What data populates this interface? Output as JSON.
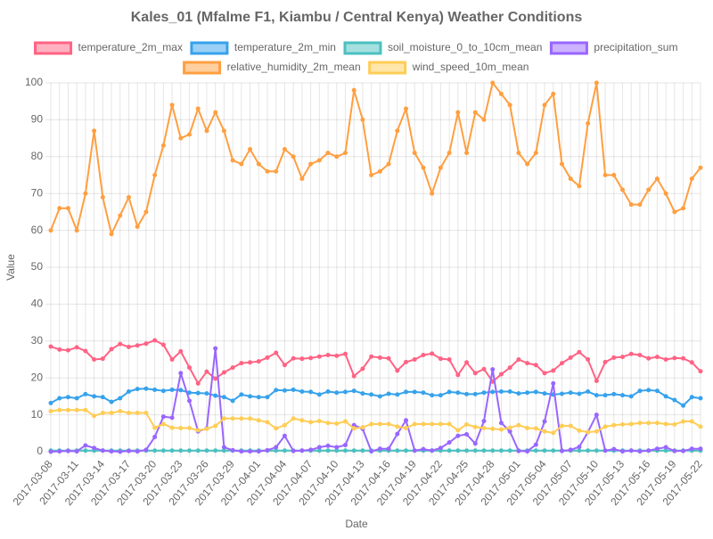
{
  "chart_data": {
    "type": "line",
    "title": "Kales_01 (Mfalme F1, Kiambu / Central Kenya) Weather Conditions",
    "x_label": "Date",
    "y_label": "Value",
    "categories": [
      "2017-03-08",
      null,
      null,
      "2017-03-11",
      null,
      null,
      "2017-03-14",
      null,
      null,
      "2017-03-17",
      null,
      null,
      "2017-03-20",
      null,
      null,
      "2017-03-23",
      null,
      null,
      "2017-03-26",
      null,
      null,
      "2017-03-29",
      null,
      null,
      "2017-04-01",
      null,
      null,
      "2017-04-04",
      null,
      null,
      "2017-04-07",
      null,
      null,
      "2017-04-10",
      null,
      null,
      "2017-04-13",
      null,
      null,
      "2017-04-16",
      null,
      null,
      "2017-04-19",
      null,
      null,
      "2017-04-22",
      null,
      null,
      "2017-04-25",
      null,
      null,
      "2017-04-28",
      null,
      null,
      "2017-05-01",
      null,
      null,
      "2017-05-04",
      null,
      null,
      "2017-05-07",
      null,
      null,
      "2017-05-10",
      null,
      null,
      "2017-05-13",
      null,
      null,
      "2017-05-16",
      null,
      null,
      "2017-05-19",
      null,
      null,
      "2017-05-22"
    ],
    "ylim": [
      0,
      100
    ],
    "yticks": [
      0,
      10,
      20,
      30,
      40,
      50,
      60,
      70,
      80,
      90,
      100
    ],
    "grid": true,
    "legend": "top",
    "series": [
      {
        "name": "temperature_2m_max",
        "color": "#ff6384",
        "values": [
          28.5,
          27.7,
          27.5,
          28.3,
          27.3,
          25,
          25.2,
          27.8,
          29.2,
          28.4,
          28.8,
          29.3,
          30.2,
          29,
          25,
          27.2,
          22.8,
          18.5,
          21.7,
          19.8,
          21.5,
          22.8,
          24,
          24.2,
          24.5,
          25.5,
          26.8,
          23.5,
          25.3,
          25.2,
          25.4,
          25.8,
          26.2,
          26,
          26.5,
          20.5,
          22.5,
          25.8,
          25.5,
          25.3,
          22,
          24.3,
          25,
          26.2,
          26.6,
          25.2,
          25,
          20.8,
          24.2,
          21.3,
          22.4,
          19,
          21,
          22.8,
          25,
          24,
          23.5,
          21.3,
          22,
          24,
          25.5,
          27,
          25,
          19.2,
          24.3,
          25.5,
          25.7,
          26.5,
          26.2,
          25.3,
          25.7,
          25,
          25.4,
          25.3,
          24.2,
          21.8
        ]
      },
      {
        "name": "temperature_2m_min",
        "color": "#36a2eb",
        "values": [
          13.2,
          14.5,
          14.8,
          14.5,
          15.6,
          15,
          14.8,
          13.5,
          14.5,
          16.3,
          17,
          17.1,
          16.8,
          16.5,
          16.8,
          16.7,
          16,
          15.9,
          15.8,
          15.2,
          14.8,
          13.8,
          15.5,
          15,
          14.8,
          14.8,
          16.7,
          16.6,
          16.8,
          16.3,
          16.2,
          15.5,
          16.3,
          16,
          16.2,
          16.5,
          15.8,
          15.5,
          15,
          15.7,
          15.5,
          16.2,
          16.2,
          16,
          15.3,
          15.3,
          16.2,
          16,
          15.6,
          15.6,
          16,
          16.2,
          16.3,
          16.3,
          15.8,
          16,
          16.2,
          15.8,
          15.5,
          15.7,
          16,
          15.7,
          16.3,
          15.3,
          15.3,
          15.6,
          15.3,
          15,
          16.5,
          16.7,
          16.5,
          15,
          14,
          12.5,
          14.8,
          14.5
        ]
      },
      {
        "name": "soil_moisture_0_to_10cm_mean",
        "color": "#4bc0c0",
        "values": [
          0.3,
          0.3,
          0.3,
          0.3,
          0.3,
          0.3,
          0.3,
          0.3,
          0.3,
          0.3,
          0.3,
          0.3,
          0.3,
          0.3,
          0.3,
          0.3,
          0.3,
          0.3,
          0.3,
          0.3,
          0.3,
          0.3,
          0.3,
          0.3,
          0.3,
          0.3,
          0.3,
          0.3,
          0.3,
          0.3,
          0.3,
          0.3,
          0.3,
          0.3,
          0.3,
          0.3,
          0.3,
          0.3,
          0.3,
          0.3,
          0.3,
          0.3,
          0.3,
          0.3,
          0.3,
          0.3,
          0.3,
          0.3,
          0.3,
          0.3,
          0.3,
          0.3,
          0.3,
          0.3,
          0.3,
          0.3,
          0.3,
          0.3,
          0.3,
          0.3,
          0.3,
          0.3,
          0.3,
          0.3,
          0.3,
          0.3,
          0.3,
          0.3,
          0.3,
          0.3,
          0.3,
          0.3,
          0.3,
          0.3,
          0.3,
          0.3
        ]
      },
      {
        "name": "precipitation_sum",
        "color": "#9966ff",
        "values": [
          0,
          0.1,
          0.2,
          0.1,
          1.7,
          1,
          0.3,
          0.1,
          0,
          0.2,
          0.1,
          0.5,
          4,
          9.5,
          9.2,
          21.3,
          13.8,
          5.5,
          6.3,
          28,
          1.2,
          0.4,
          0.1,
          0.1,
          0.1,
          0.4,
          1.2,
          4.3,
          0.2,
          0.3,
          0.5,
          1.2,
          1.6,
          1.2,
          1.8,
          7.2,
          6.2,
          0.1,
          0.8,
          0.8,
          4.8,
          8.5,
          0.3,
          0.7,
          0.3,
          1,
          2.5,
          4.3,
          4.7,
          2.2,
          8.3,
          22.3,
          7.8,
          5.5,
          0.2,
          0.1,
          1.9,
          8.2,
          18.5,
          0.2,
          0.5,
          1.3,
          5.3,
          10,
          0.3,
          0.7,
          0.1,
          0.3,
          0.1,
          0.3,
          0.8,
          1.2,
          0.2,
          0.2,
          0.8,
          0.8
        ]
      },
      {
        "name": "relative_humidity_2m_mean",
        "color": "#ff9f40",
        "values": [
          60,
          66,
          66,
          60,
          70,
          87,
          69,
          59,
          64,
          69,
          61,
          65,
          75,
          83,
          94,
          85,
          86,
          93,
          87,
          92,
          87,
          79,
          78,
          82,
          78,
          76,
          76,
          82,
          80,
          74,
          78,
          79,
          81,
          80,
          81,
          98,
          90,
          75,
          76,
          78,
          87,
          93,
          81,
          77,
          70,
          77,
          81,
          92,
          81,
          92,
          90,
          100,
          97,
          94,
          81,
          78,
          81,
          94,
          97,
          78,
          74,
          72,
          89,
          100,
          75,
          75,
          71,
          67,
          67,
          71,
          74,
          70,
          65,
          66,
          74,
          77
        ]
      },
      {
        "name": "wind_speed_10m_mean",
        "color": "#ffcd56",
        "values": [
          11,
          11.3,
          11.3,
          11.3,
          11.3,
          9.7,
          10.5,
          10.5,
          11,
          10.5,
          10.5,
          10.5,
          6.5,
          7.5,
          6.5,
          6.4,
          6.4,
          5.8,
          6.2,
          7,
          9,
          9,
          9,
          9,
          8.5,
          8,
          6.3,
          7.2,
          9,
          8.5,
          8,
          8.3,
          7.8,
          7.6,
          8.2,
          6.3,
          6.6,
          7.5,
          7.5,
          7.5,
          6.8,
          6.4,
          7.5,
          7.5,
          7.5,
          7.5,
          7.5,
          5.8,
          7.4,
          6.7,
          6.4,
          6.2,
          6,
          6.5,
          7.2,
          6.4,
          6.3,
          5.5,
          5.1,
          7,
          7,
          5.7,
          5.3,
          5.5,
          6.8,
          7.2,
          7.4,
          7.5,
          7.8,
          7.8,
          7.8,
          7.5,
          7.4,
          8.2,
          8.2,
          6.8
        ]
      }
    ]
  }
}
